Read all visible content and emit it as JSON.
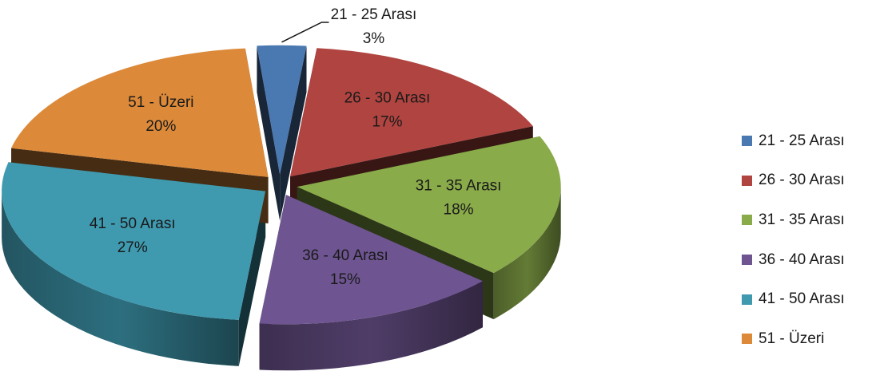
{
  "chart_data": {
    "type": "pie",
    "style": "3d-exploded",
    "title": "",
    "categories": [
      "21 - 25 Arası",
      "26 - 30 Arası",
      "31 - 35 Arası",
      "36 - 40 Arası",
      "41 - 50 Arası",
      "51 - Üzeri"
    ],
    "values": [
      3,
      17,
      18,
      15,
      27,
      20
    ],
    "value_labels": [
      "3%",
      "17%",
      "18%",
      "15%",
      "27%",
      "20%"
    ],
    "colors": [
      "#4a78b0",
      "#b04440",
      "#8aab4a",
      "#6e5591",
      "#3f9ab0",
      "#dc8a3a"
    ],
    "legend_position": "right"
  }
}
